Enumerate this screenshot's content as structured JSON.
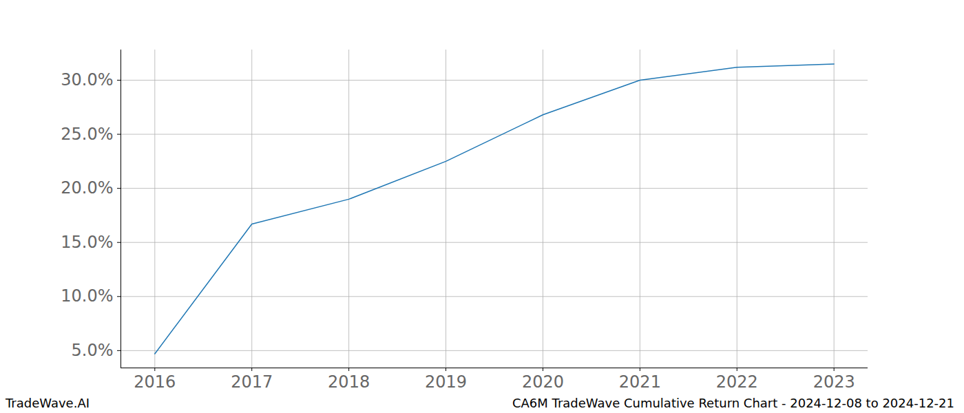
{
  "chart_data": {
    "type": "line",
    "title": "CA6M TradeWave Cumulative Return Chart - 2024-12-08 to 2024-12-21",
    "source": "TradeWave.AI",
    "x": [
      2016,
      2017,
      2018,
      2019,
      2020,
      2021,
      2022,
      2023
    ],
    "values": [
      4.7,
      16.7,
      19.0,
      22.5,
      26.8,
      30.0,
      31.2,
      31.5
    ],
    "color": "#1f77b4",
    "xlim": [
      2015.65,
      2023.35
    ],
    "xticks": [
      2016,
      2017,
      2018,
      2019,
      2020,
      2021,
      2022,
      2023
    ],
    "ylim": [
      3.4,
      32.8
    ],
    "yticks": [
      {
        "value": 5,
        "label": "5.0%"
      },
      {
        "value": 10,
        "label": "10.0%"
      },
      {
        "value": 15,
        "label": "15.0%"
      },
      {
        "value": 20,
        "label": "20.0%"
      },
      {
        "value": 25,
        "label": "25.0%"
      },
      {
        "value": 30,
        "label": "30.0%"
      }
    ],
    "grid": true
  }
}
